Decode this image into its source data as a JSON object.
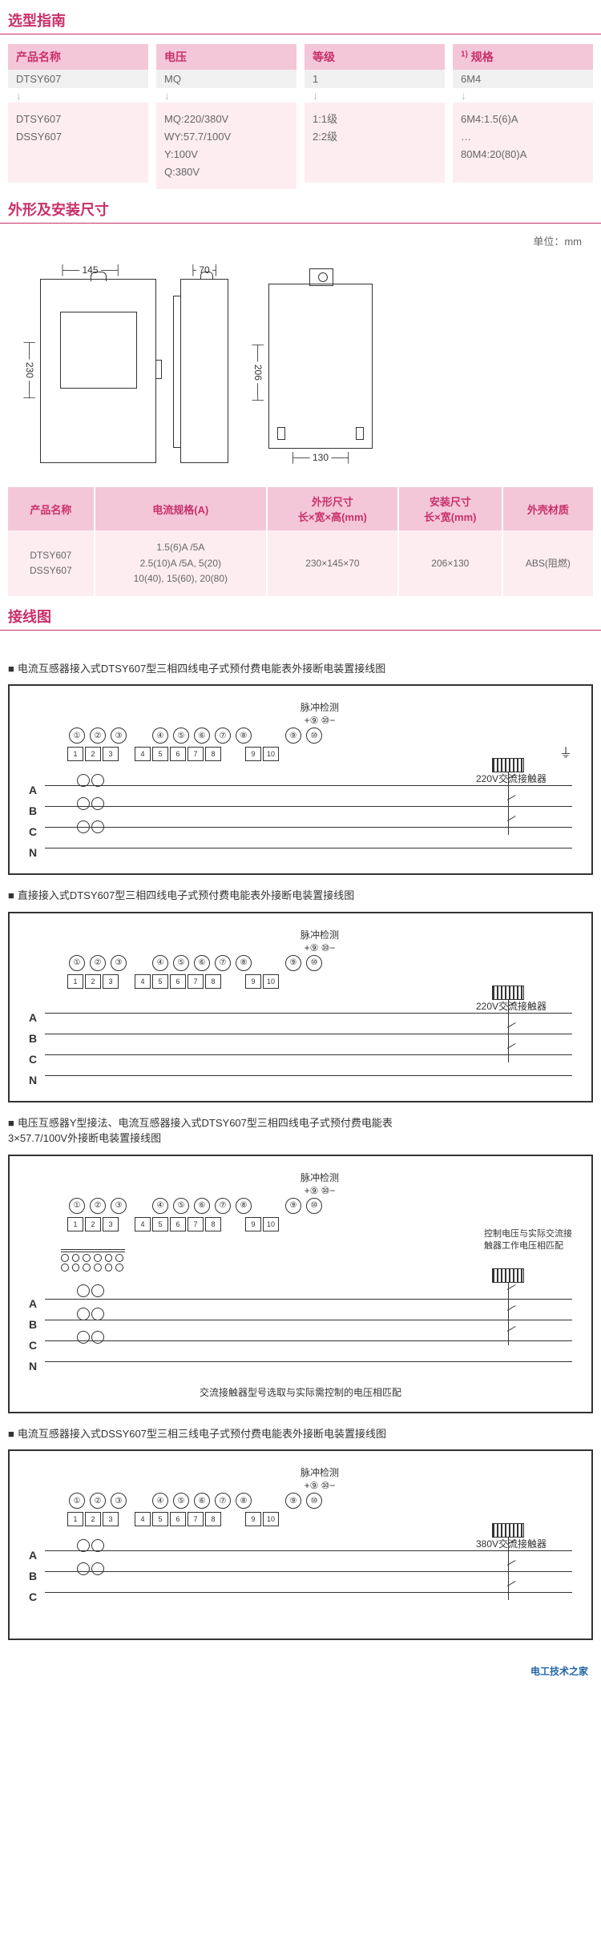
{
  "colors": {
    "accent": "#c8306a",
    "header_bg": "#f4c7d8",
    "body_bg": "#fdedf1",
    "sub_bg": "#f0f0f0",
    "text": "#333333",
    "muted": "#666666"
  },
  "sections": {
    "guide_title": "选型指南",
    "dimension_title": "外形及安装尺寸",
    "wiring_title": "接线图",
    "unit_label": "单位：mm"
  },
  "guide": {
    "cols": [
      {
        "header": "产品名称",
        "sub": "DTSY607",
        "body": [
          "DTSY607",
          "DSSY607"
        ]
      },
      {
        "header": "电压",
        "sub": "MQ",
        "body": [
          "MQ:220/380V",
          "WY:57.7/100V",
          "Y:100V",
          "Q:380V"
        ]
      },
      {
        "header": "等级",
        "sub": "1",
        "body": [
          "1:1级",
          "2:2级"
        ]
      },
      {
        "header_prefix": "1)",
        "header": "规格",
        "sub": "6M4",
        "body": [
          "6M4:1.5(6)A",
          "…",
          "80M4:20(80)A"
        ]
      }
    ]
  },
  "drawings": {
    "front": {
      "width": "145",
      "height": "230"
    },
    "side": {
      "width": "70",
      "height_ref": "230"
    },
    "back": {
      "width": "130",
      "height": "206"
    }
  },
  "spec_table": {
    "headers": [
      "产品名称",
      "电流规格(A)",
      "外形尺寸\n长×宽×高(mm)",
      "安装尺寸\n长×宽(mm)",
      "外壳材质"
    ],
    "row": {
      "name": "DTSY607\nDSSY607",
      "current": "1.5(6)A /5A\n2.5(10)A /5A, 5(20)\n10(40), 15(60), 20(80)",
      "outer": "230×145×70",
      "mount": "206×130",
      "shell": "ABS(阻燃)"
    }
  },
  "wiring": {
    "pulse_label": "脉冲检测",
    "pulse_pins": "+⑨ ⑩−",
    "terminals_circled": [
      "①",
      "②",
      "③",
      "④",
      "⑤",
      "⑥",
      "⑦",
      "⑧",
      "⑨",
      "⑩"
    ],
    "terminals_num": [
      "1",
      "2",
      "3",
      "4",
      "5",
      "6",
      "7",
      "8",
      "9",
      "10"
    ],
    "phases4": [
      "A",
      "B",
      "C",
      "N"
    ],
    "phases3": [
      "A",
      "B",
      "C"
    ],
    "items": [
      {
        "title": "电流互感器接入式DTSY607型三相四线电子式预付费电能表外接断电装置接线图",
        "contactor": "220V交流接触器",
        "phases": 4,
        "ct": true,
        "ground": true
      },
      {
        "title": "直接接入式DTSY607型三相四线电子式预付费电能表外接断电装置接线图",
        "contactor": "220V交流接触器",
        "phases": 4,
        "ct": false,
        "ground": false
      },
      {
        "title": "电压互感器Y型接法、电流互感器接入式DTSY607型三相四线电子式预付费电能表\n3×57.7/100V外接断电装置接线图",
        "side_note": "控制电压与实际交流接触器工作电压相匹配",
        "bottom_note": "交流接触器型号选取与实际需控制的电压相匹配",
        "phases": 4,
        "ct": true,
        "pt": true,
        "tall": true
      },
      {
        "title": "电流互感器接入式DSSY607型三相三线电子式预付费电能表外接断电装置接线图",
        "contactor": "380V交流接触器",
        "phases": 3,
        "ct": true,
        "ground": false
      }
    ]
  },
  "footer": {
    "brand": "电工技术之家",
    "url": ""
  }
}
